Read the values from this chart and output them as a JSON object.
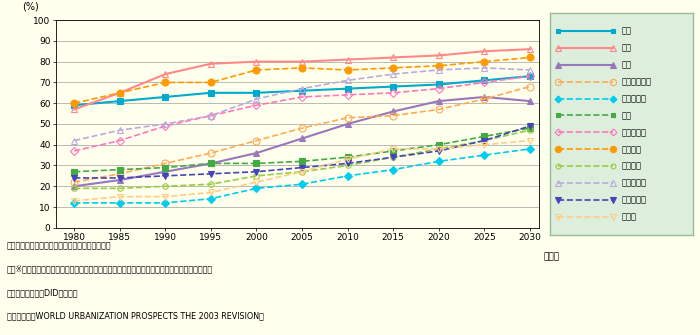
{
  "years": [
    1980,
    1985,
    1990,
    1995,
    2000,
    2005,
    2010,
    2015,
    2020,
    2025,
    2030
  ],
  "series_order": [
    "日本",
    "韓国",
    "中国",
    "インドネシア",
    "カンボジア",
    "タイ",
    "フィリピン",
    "ブルネイ",
    "ベトナム",
    "マレーシア",
    "ミャンマー",
    "ラオス"
  ],
  "series": {
    "日本": {
      "values": [
        59,
        61,
        63,
        65,
        65,
        66,
        67,
        68,
        69,
        71,
        73
      ],
      "color": "#00AACC",
      "linestyle": "-",
      "marker": "s",
      "markersize": 4,
      "fillstyle": "full",
      "linewidth": 1.5
    },
    "韓国": {
      "values": [
        57,
        65,
        74,
        79,
        80,
        80,
        81,
        82,
        83,
        85,
        86
      ],
      "color": "#FF8888",
      "linestyle": "-",
      "marker": "^",
      "markersize": 5,
      "fillstyle": "none",
      "linewidth": 1.5
    },
    "中国": {
      "values": [
        20,
        23,
        27,
        31,
        36,
        43,
        50,
        56,
        61,
        63,
        61
      ],
      "color": "#9977BB",
      "linestyle": "-",
      "marker": "^",
      "markersize": 5,
      "fillstyle": "full",
      "linewidth": 1.5
    },
    "インドネシア": {
      "values": [
        22,
        26,
        31,
        36,
        42,
        48,
        53,
        54,
        57,
        62,
        68
      ],
      "color": "#FFAA55",
      "linestyle": "--",
      "marker": "o",
      "markersize": 5,
      "fillstyle": "none",
      "linewidth": 1.2
    },
    "カンボジア": {
      "values": [
        12,
        12,
        12,
        14,
        19,
        21,
        25,
        28,
        32,
        35,
        38
      ],
      "color": "#00CCEE",
      "linestyle": "--",
      "marker": "D",
      "markersize": 4,
      "fillstyle": "full",
      "linewidth": 1.2
    },
    "タイ": {
      "values": [
        27,
        28,
        29,
        31,
        31,
        32,
        34,
        37,
        40,
        44,
        48
      ],
      "color": "#44AA44",
      "linestyle": "--",
      "marker": "s",
      "markersize": 4,
      "fillstyle": "full",
      "linewidth": 1.2
    },
    "フィリピン": {
      "values": [
        37,
        42,
        49,
        54,
        59,
        63,
        64,
        65,
        67,
        70,
        73
      ],
      "color": "#FF77BB",
      "linestyle": "--",
      "marker": "D",
      "markersize": 4,
      "fillstyle": "none",
      "linewidth": 1.2
    },
    "ブルネイ": {
      "values": [
        60,
        65,
        70,
        70,
        76,
        77,
        76,
        77,
        78,
        80,
        82
      ],
      "color": "#FF9900",
      "linestyle": "--",
      "marker": "o",
      "markersize": 5,
      "fillstyle": "full",
      "linewidth": 1.2
    },
    "ベトナム": {
      "values": [
        19,
        19,
        20,
        21,
        25,
        27,
        30,
        34,
        38,
        42,
        47
      ],
      "color": "#99CC44",
      "linestyle": "--",
      "marker": "o",
      "markersize": 4,
      "fillstyle": "none",
      "linewidth": 1.2
    },
    "マレーシア": {
      "values": [
        42,
        47,
        50,
        54,
        62,
        67,
        71,
        74,
        76,
        77,
        76
      ],
      "color": "#BBAADD",
      "linestyle": "--",
      "marker": "^",
      "markersize": 5,
      "fillstyle": "none",
      "linewidth": 1.2
    },
    "ミャンマー": {
      "values": [
        24,
        24,
        25,
        26,
        27,
        29,
        31,
        34,
        37,
        42,
        49
      ],
      "color": "#4444BB",
      "linestyle": "--",
      "marker": "v",
      "markersize": 5,
      "fillstyle": "full",
      "linewidth": 1.2
    },
    "ラオス": {
      "values": [
        13,
        15,
        15,
        17,
        22,
        27,
        33,
        38,
        38,
        40,
        42
      ],
      "color": "#FFCC88",
      "linestyle": "--",
      "marker": "v",
      "markersize": 5,
      "fillstyle": "none",
      "linewidth": 1.2
    }
  },
  "ylabel": "(%)",
  "ylim": [
    0,
    100
  ],
  "yticks": [
    0,
    10,
    20,
    30,
    40,
    50,
    60,
    70,
    80,
    90,
    100
  ],
  "background_color": "#FFFFEE",
  "legend_bg": "#DDEEDD",
  "legend_border": "#99BB99",
  "note1": "（注）都市化率＝（都市居住者数）／（総人口）",
  "note2": "　　※都市居住者数とは、各国の国勢調査において定義されている「都市」の居住者数である。",
  "note3": "　　（例）日本：DID地区人口",
  "note4": "資料）国連『WORLD URBANIZATION PROSPECTS THE 2003 REVISION』"
}
